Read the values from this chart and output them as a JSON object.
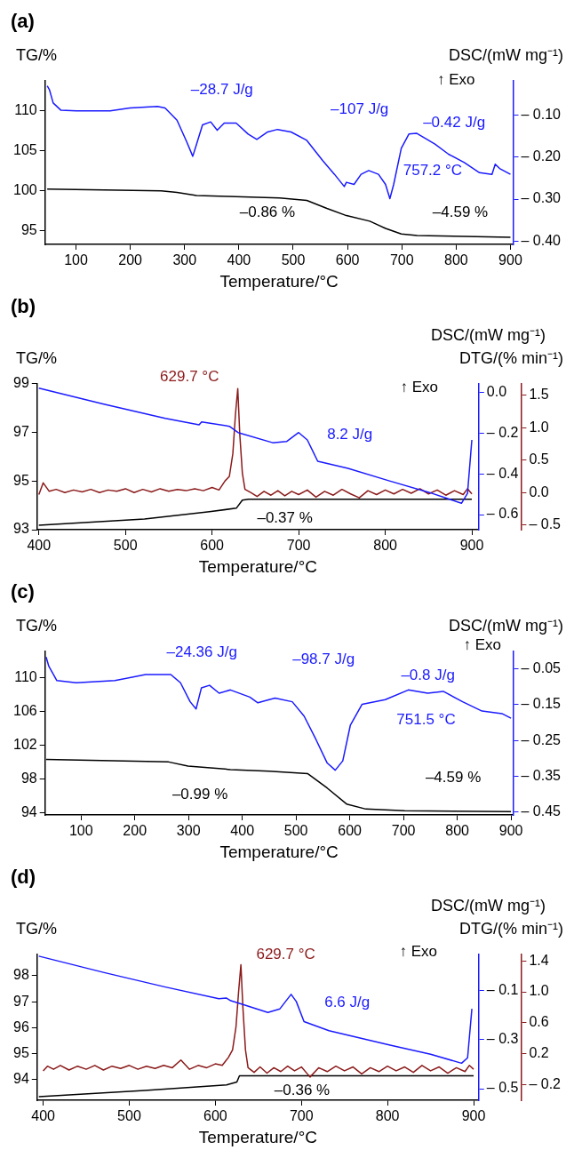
{
  "chart_data": [
    {
      "type": "line",
      "title": "(a)",
      "xlabel": "Temperature/°C",
      "ylabel": "TG/%",
      "y2label": "DSC/(mW mg⁻¹)",
      "xlim": [
        43,
        905
      ],
      "xticks": [
        100,
        200,
        300,
        400,
        500,
        600,
        700,
        800,
        900
      ],
      "ylim": [
        93.3,
        113.8
      ],
      "yticks": [
        95,
        100,
        105,
        110
      ],
      "y2lim": [
        -0.408,
        -0.017
      ],
      "y2ticks": [
        {
          "value": -0.1,
          "label": "– 0.10"
        },
        {
          "value": -0.2,
          "label": "– 0.20"
        },
        {
          "value": -0.3,
          "label": "– 0.30"
        },
        {
          "value": -0.4,
          "label": "– 0.40"
        }
      ],
      "series": [
        {
          "color": "#1a1aff",
          "axis": "y2",
          "x": [
            47,
            51,
            58,
            72,
            101,
            163,
            199,
            250,
            264,
            286,
            304,
            315,
            322,
            333,
            348,
            360,
            373,
            395,
            417,
            433,
            453,
            471,
            496,
            525,
            554,
            576,
            594,
            598,
            612,
            625,
            639,
            657,
            670,
            678,
            685,
            699,
            713,
            727,
            743,
            761,
            786,
            815,
            843,
            866,
            872,
            880,
            900
          ],
          "values": [
            -0.03,
            -0.039,
            -0.071,
            -0.088,
            -0.09,
            -0.09,
            -0.083,
            -0.079,
            -0.083,
            -0.112,
            -0.164,
            -0.198,
            -0.169,
            -0.123,
            -0.116,
            -0.136,
            -0.119,
            -0.119,
            -0.145,
            -0.158,
            -0.14,
            -0.134,
            -0.14,
            -0.16,
            -0.208,
            -0.241,
            -0.27,
            -0.26,
            -0.265,
            -0.241,
            -0.232,
            -0.241,
            -0.265,
            -0.299,
            -0.265,
            -0.179,
            -0.145,
            -0.143,
            -0.155,
            -0.169,
            -0.193,
            -0.213,
            -0.237,
            -0.241,
            -0.217,
            -0.227,
            -0.241
          ]
        },
        {
          "color": "#000000",
          "axis": "y",
          "x": [
            47,
            257,
            286,
            322,
            380,
            475,
            525,
            562,
            598,
            641,
            670,
            699,
            728,
            815,
            900
          ],
          "values": [
            100.2,
            100.0,
            99.8,
            99.4,
            99.3,
            99.1,
            98.8,
            97.8,
            96.9,
            96.2,
            95.3,
            94.6,
            94.4,
            94.3,
            94.2
          ]
        }
      ],
      "annotations": [
        "↑ Exo",
        "–28.7 J/g",
        "–107 J/g",
        "–0.42 J/g",
        "757.2 °C",
        "–0.86 %",
        "–4.59 %"
      ]
    },
    {
      "type": "line",
      "title": "(b)",
      "xlabel": "Temperature/°C",
      "ylabel": "TG/%",
      "y2label": "DSC/(mW mg⁻¹)",
      "y3label": "DTG/(% min⁻¹)",
      "xlim": [
        398,
        908
      ],
      "xticks": [
        400,
        500,
        600,
        700,
        800,
        900
      ],
      "ylim": [
        93,
        99
      ],
      "yticks": [
        93,
        95,
        97,
        99
      ],
      "y2lim": [
        -0.674,
        0.046
      ],
      "y2ticks": [
        {
          "value": 0,
          "label": "0.0"
        },
        {
          "value": -0.2,
          "label": "– 0.2"
        },
        {
          "value": -0.4,
          "label": "– 0.4"
        },
        {
          "value": -0.6,
          "label": "– 0.6"
        }
      ],
      "y3lim": [
        -0.57,
        1.68
      ],
      "y3ticks": [
        {
          "value": 1.5,
          "label": "1.5"
        },
        {
          "value": 1,
          "label": "1.0"
        },
        {
          "value": 0.5,
          "label": "0.5"
        },
        {
          "value": 0,
          "label": "0.0"
        },
        {
          "value": -0.5,
          "label": "– 0.5"
        }
      ],
      "series": [
        {
          "color": "#1a1aff",
          "axis": "y2",
          "x": [
            400,
            475,
            546,
            585,
            588,
            620,
            630,
            670,
            686,
            700,
            710,
            722,
            757,
            804,
            851,
            888,
            895,
            900
          ],
          "values": [
            0.023,
            -0.056,
            -0.126,
            -0.158,
            -0.144,
            -0.165,
            -0.196,
            -0.246,
            -0.24,
            -0.196,
            -0.232,
            -0.337,
            -0.372,
            -0.433,
            -0.491,
            -0.544,
            -0.495,
            -0.232
          ]
        },
        {
          "color": "#8b1a1a",
          "axis": "y3",
          "x": [
            400,
            405,
            412,
            420,
            430,
            440,
            450,
            460,
            470,
            480,
            490,
            500,
            510,
            520,
            530,
            540,
            550,
            560,
            570,
            580,
            590,
            600,
            608,
            615,
            620,
            624,
            627,
            629.7,
            632,
            635,
            638,
            645,
            652,
            660,
            668,
            676,
            684,
            692,
            700,
            710,
            720,
            730,
            740,
            750,
            760,
            770,
            780,
            790,
            800,
            810,
            820,
            830,
            840,
            850,
            860,
            870,
            880,
            890,
            895,
            900
          ],
          "values": [
            -0.03,
            0.15,
            0.02,
            0.05,
            0.0,
            0.04,
            0.01,
            0.05,
            0.0,
            0.04,
            0.02,
            0.06,
            0.0,
            0.05,
            0.01,
            0.06,
            0.02,
            0.05,
            0.03,
            0.06,
            0.03,
            0.08,
            0.04,
            0.18,
            0.25,
            0.6,
            1.2,
            1.6,
            0.9,
            0.3,
            0.05,
            0.0,
            -0.06,
            0.02,
            -0.04,
            0.03,
            -0.05,
            0.02,
            -0.03,
            0.04,
            -0.07,
            0.02,
            -0.04,
            0.05,
            -0.02,
            -0.08,
            0.03,
            -0.03,
            0.04,
            -0.02,
            0.05,
            -0.01,
            0.06,
            -0.02,
            0.04,
            -0.04,
            0.03,
            -0.03,
            0.06,
            -0.02
          ]
        },
        {
          "color": "#000000",
          "axis": "y",
          "x": [
            400,
            522,
            597,
            628,
            635,
            642,
            900
          ],
          "values": [
            93.18,
            93.44,
            93.74,
            93.88,
            94.21,
            94.25,
            94.25
          ]
        }
      ],
      "annotations": [
        "629.7 °C",
        "↑ Exo",
        "8.2 J/g",
        "–0.37 %"
      ]
    },
    {
      "type": "line",
      "title": "(c)",
      "xlabel": "Temperature/°C",
      "ylabel": "TG/%",
      "y2label": "DSC/(mW mg⁻¹)",
      "xlim": [
        33,
        904
      ],
      "xticks": [
        100,
        200,
        300,
        400,
        500,
        600,
        700,
        800,
        900
      ],
      "ylim": [
        93.7,
        113.2
      ],
      "yticks": [
        94,
        98,
        102,
        106,
        110
      ],
      "y2lim": [
        -0.458,
        0
      ],
      "y2ticks": [
        {
          "value": -0.05,
          "label": "– 0.05"
        },
        {
          "value": -0.15,
          "label": "– 0.15"
        },
        {
          "value": -0.25,
          "label": "– 0.25"
        },
        {
          "value": -0.35,
          "label": "– 0.35"
        },
        {
          "value": -0.45,
          "label": "– 0.45"
        }
      ],
      "series": [
        {
          "color": "#1a1aff",
          "axis": "y2",
          "x": [
            35,
            40,
            55,
            91,
            163,
            220,
            267,
            285,
            303,
            314,
            324,
            339,
            357,
            378,
            414,
            429,
            450,
            461,
            493,
            515,
            537,
            558,
            573,
            587,
            601,
            623,
            666,
            709,
            745,
            774,
            810,
            846,
            883,
            900
          ],
          "values": [
            -0.017,
            -0.043,
            -0.083,
            -0.089,
            -0.083,
            -0.066,
            -0.066,
            -0.089,
            -0.142,
            -0.162,
            -0.103,
            -0.096,
            -0.118,
            -0.109,
            -0.129,
            -0.145,
            -0.136,
            -0.132,
            -0.142,
            -0.182,
            -0.247,
            -0.313,
            -0.333,
            -0.307,
            -0.208,
            -0.149,
            -0.136,
            -0.109,
            -0.118,
            -0.113,
            -0.142,
            -0.168,
            -0.175,
            -0.188
          ]
        },
        {
          "color": "#000000",
          "axis": "y",
          "x": [
            35,
            263,
            299,
            378,
            450,
            522,
            558,
            594,
            630,
            702,
            900
          ],
          "values": [
            100.3,
            100.0,
            99.5,
            99.1,
            98.9,
            98.6,
            96.9,
            95.0,
            94.4,
            94.2,
            94.1
          ]
        }
      ],
      "annotations": [
        "–24.36 J/g",
        "–98.7 J/g",
        "–0.8 J/g",
        "751.5 °C",
        "↑ Exo",
        "–0.99 %",
        "–4.59 %"
      ]
    },
    {
      "type": "line",
      "title": "(d)",
      "xlabel": "Temperature/°C",
      "ylabel": "TG/%",
      "y2label": "DSC/(mW mg⁻¹)",
      "y3label": "DTG/(% min⁻¹)",
      "xlim": [
        393,
        906
      ],
      "xticks": [
        400,
        500,
        600,
        700,
        800,
        900
      ],
      "ylim": [
        93.2,
        98.84
      ],
      "yticks": [
        94,
        95,
        96,
        97,
        98
      ],
      "y2lim": [
        -0.547,
        0.05
      ],
      "y2ticks": [
        {
          "value": -0.1,
          "label": "– 0.1"
        },
        {
          "value": -0.3,
          "label": "– 0.3"
        },
        {
          "value": -0.5,
          "label": "– 0.5"
        }
      ],
      "y3lim": [
        -0.4,
        1.49
      ],
      "y3ticks": [
        {
          "value": 1.4,
          "label": "1.4"
        },
        {
          "value": 1,
          "label": "1.0"
        },
        {
          "value": 0.6,
          "label": "0.6"
        },
        {
          "value": 0.2,
          "label": "0.2"
        },
        {
          "value": -0.2,
          "label": "– 0.2"
        }
      ],
      "series": [
        {
          "color": "#1a1aff",
          "axis": "y2",
          "x": [
            395,
            471,
            542,
            604,
            613,
            618,
            632,
            661,
            675,
            688,
            694,
            703,
            732,
            803,
            850,
            886,
            893,
            898
          ],
          "values": [
            0.041,
            -0.026,
            -0.085,
            -0.133,
            -0.13,
            -0.141,
            -0.156,
            -0.189,
            -0.174,
            -0.115,
            -0.144,
            -0.226,
            -0.263,
            -0.322,
            -0.359,
            -0.396,
            -0.374,
            -0.174
          ]
        },
        {
          "color": "#8b1a1a",
          "axis": "y3",
          "x": [
            400,
            405,
            412,
            420,
            430,
            440,
            450,
            460,
            470,
            480,
            490,
            500,
            510,
            520,
            530,
            540,
            550,
            560,
            570,
            580,
            590,
            600,
            608,
            615,
            620,
            624,
            627,
            629.7,
            632,
            635,
            638,
            645,
            652,
            660,
            668,
            676,
            684,
            692,
            700,
            710,
            720,
            730,
            740,
            750,
            760,
            770,
            780,
            790,
            800,
            810,
            820,
            830,
            840,
            850,
            860,
            870,
            880,
            890,
            895,
            900
          ],
          "values": [
            -0.02,
            0.04,
            0.0,
            0.05,
            -0.01,
            0.04,
            0.0,
            0.05,
            -0.01,
            0.04,
            0.01,
            0.05,
            0.0,
            0.04,
            0.01,
            0.05,
            0.02,
            0.12,
            0.0,
            0.05,
            0.02,
            0.07,
            0.05,
            0.15,
            0.25,
            0.55,
            1.0,
            1.35,
            0.8,
            0.25,
            0.02,
            -0.04,
            0.03,
            -0.05,
            0.02,
            -0.03,
            0.04,
            -0.02,
            0.03,
            -0.1,
            0.02,
            -0.03,
            0.04,
            -0.02,
            0.03,
            -0.06,
            0.02,
            -0.03,
            0.04,
            -0.02,
            0.03,
            -0.04,
            0.05,
            -0.02,
            0.03,
            -0.05,
            0.02,
            -0.03,
            0.05,
            0.0
          ]
        },
        {
          "color": "#000000",
          "axis": "y",
          "x": [
            395,
            518,
            613,
            625,
            628,
            900
          ],
          "values": [
            93.34,
            93.58,
            93.79,
            93.9,
            94.14,
            94.14
          ]
        }
      ],
      "annotations": [
        "629.7 °C",
        "↑ Exo",
        "6.6 J/g",
        "–0.36 %"
      ]
    }
  ]
}
